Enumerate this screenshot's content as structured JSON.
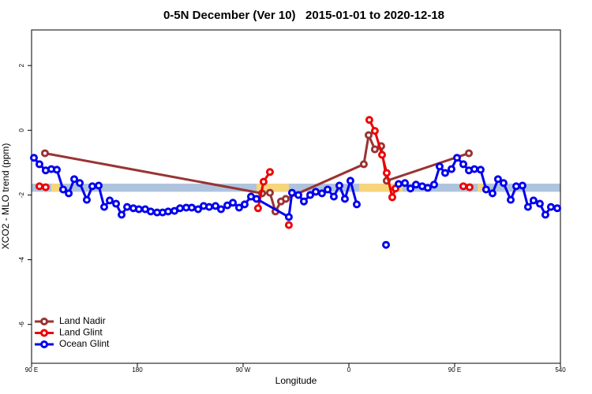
{
  "chart_data": {
    "type": "line",
    "title": "0-5N December (Ver 10)   2015-01-01 to 2020-12-18",
    "x_label": "Longitude",
    "y_label": "XCO2 - MLO trend (ppm)",
    "xlim": [
      90,
      540
    ],
    "ylim": [
      -7.2,
      3.1
    ],
    "xticks": [
      {
        "value": 90,
        "label": "90 E"
      },
      180,
      {
        "value": 270,
        "label": "90 W"
      },
      {
        "value": 360,
        "label": "0"
      },
      {
        "value": 450,
        "label": "90 E"
      },
      540
    ],
    "yticks": [
      2,
      0,
      -2,
      -4,
      -6
    ],
    "legend": "bottom-left",
    "band": {
      "ymin": -1.9,
      "ymax": -1.65,
      "color": "#aec3dd"
    },
    "highlight_spans": {
      "color": "#f7d57a",
      "spans": [
        [
          106.8,
          113.5
        ],
        [
          281.4,
          308.9
        ],
        [
          368.7,
          405.7
        ],
        [
          469.5,
          474.2
        ]
      ]
    },
    "series": [
      {
        "name": "Land Nadir",
        "color": "#993333",
        "x": [
          101.4,
          286.1,
          292.8,
          297.5,
          302.2,
          306.3,
          372.7,
          376.8,
          382.1,
          387.5,
          392.2,
          462.1
        ],
        "values": [
          -0.71,
          -1.95,
          -1.93,
          -2.51,
          -2.2,
          -2.12,
          -1.05,
          -0.15,
          -0.59,
          -0.49,
          -1.56,
          -0.71
        ]
      },
      {
        "name": "Land Glint",
        "color": "#ee0000",
        "x": [
          96.7,
          102,
          200,
          282.7,
          287.4,
          292.8,
          300,
          308.9,
          340,
          377.4,
          382.1,
          388.2,
          392.2,
          396.9,
          399.6,
          430,
          457.4,
          462.7
        ],
        "values": [
          -1.73,
          -1.76,
          null,
          -2.41,
          -1.59,
          -1.29,
          null,
          -2.93,
          null,
          0.32,
          -0.02,
          -0.76,
          -1.32,
          -2.07,
          -1.8,
          null,
          -1.73,
          -1.76
        ]
      },
      {
        "name": "Ocean Glint",
        "color": "#0000ee",
        "x": [
          92,
          96.7,
          102,
          106.8,
          111.5,
          116.9,
          121.6,
          126.3,
          131,
          137,
          141.7,
          147.1,
          151.8,
          156.5,
          161.9,
          166.6,
          171.3,
          176.6,
          181.3,
          186.7,
          191.4,
          196.8,
          201.5,
          206.2,
          211.6,
          216.3,
          221.6,
          226.3,
          231.7,
          236.4,
          241.1,
          246.5,
          251.2,
          256.6,
          261.3,
          266.6,
          271.3,
          276.7,
          281.4,
          308.9,
          311.6,
          317,
          321.7,
          327.1,
          331.8,
          337.1,
          341.9,
          347.2,
          351.9,
          356.6,
          361.3,
          366.7,
          380,
          391.6,
          397,
          402.3,
          407.7,
          412.4,
          417.1,
          422.4,
          427.1,
          432.5,
          437.2,
          441.9,
          447.3,
          452,
          457.4,
          462.1,
          466.8,
          472.1,
          476.8,
          482.2,
          486.9,
          491.6,
          497.7,
          502.4,
          507.7,
          512.4,
          517.1,
          522.5,
          527.2,
          531.9,
          537.3
        ],
        "values": [
          -0.85,
          -1.05,
          -1.24,
          -1.2,
          -1.22,
          -1.83,
          -1.95,
          -1.51,
          -1.63,
          -2.15,
          -1.73,
          -1.71,
          -2.37,
          -2.17,
          -2.27,
          -2.61,
          -2.37,
          -2.41,
          -2.44,
          -2.44,
          -2.51,
          -2.54,
          -2.54,
          -2.51,
          -2.49,
          -2.41,
          -2.39,
          -2.39,
          -2.44,
          -2.34,
          -2.37,
          -2.34,
          -2.44,
          -2.32,
          -2.24,
          -2.39,
          -2.29,
          -2.05,
          -2.12,
          -2.68,
          -1.93,
          -2,
          -2.2,
          -2,
          -1.9,
          -1.95,
          -1.83,
          -2.05,
          -1.71,
          -2.12,
          -1.56,
          -2.29,
          null,
          -3.54,
          null,
          -1.66,
          -1.63,
          -1.8,
          -1.68,
          -1.73,
          -1.78,
          -1.68,
          -1.12,
          -1.32,
          -1.2,
          -0.85,
          -1.05,
          -1.24,
          -1.2,
          -1.22,
          -1.83,
          -1.95,
          -1.51,
          -1.63,
          -2.15,
          -1.73,
          -1.71,
          -2.37,
          -2.17,
          -2.27,
          -2.61,
          -2.37,
          -2.41
        ]
      }
    ]
  }
}
